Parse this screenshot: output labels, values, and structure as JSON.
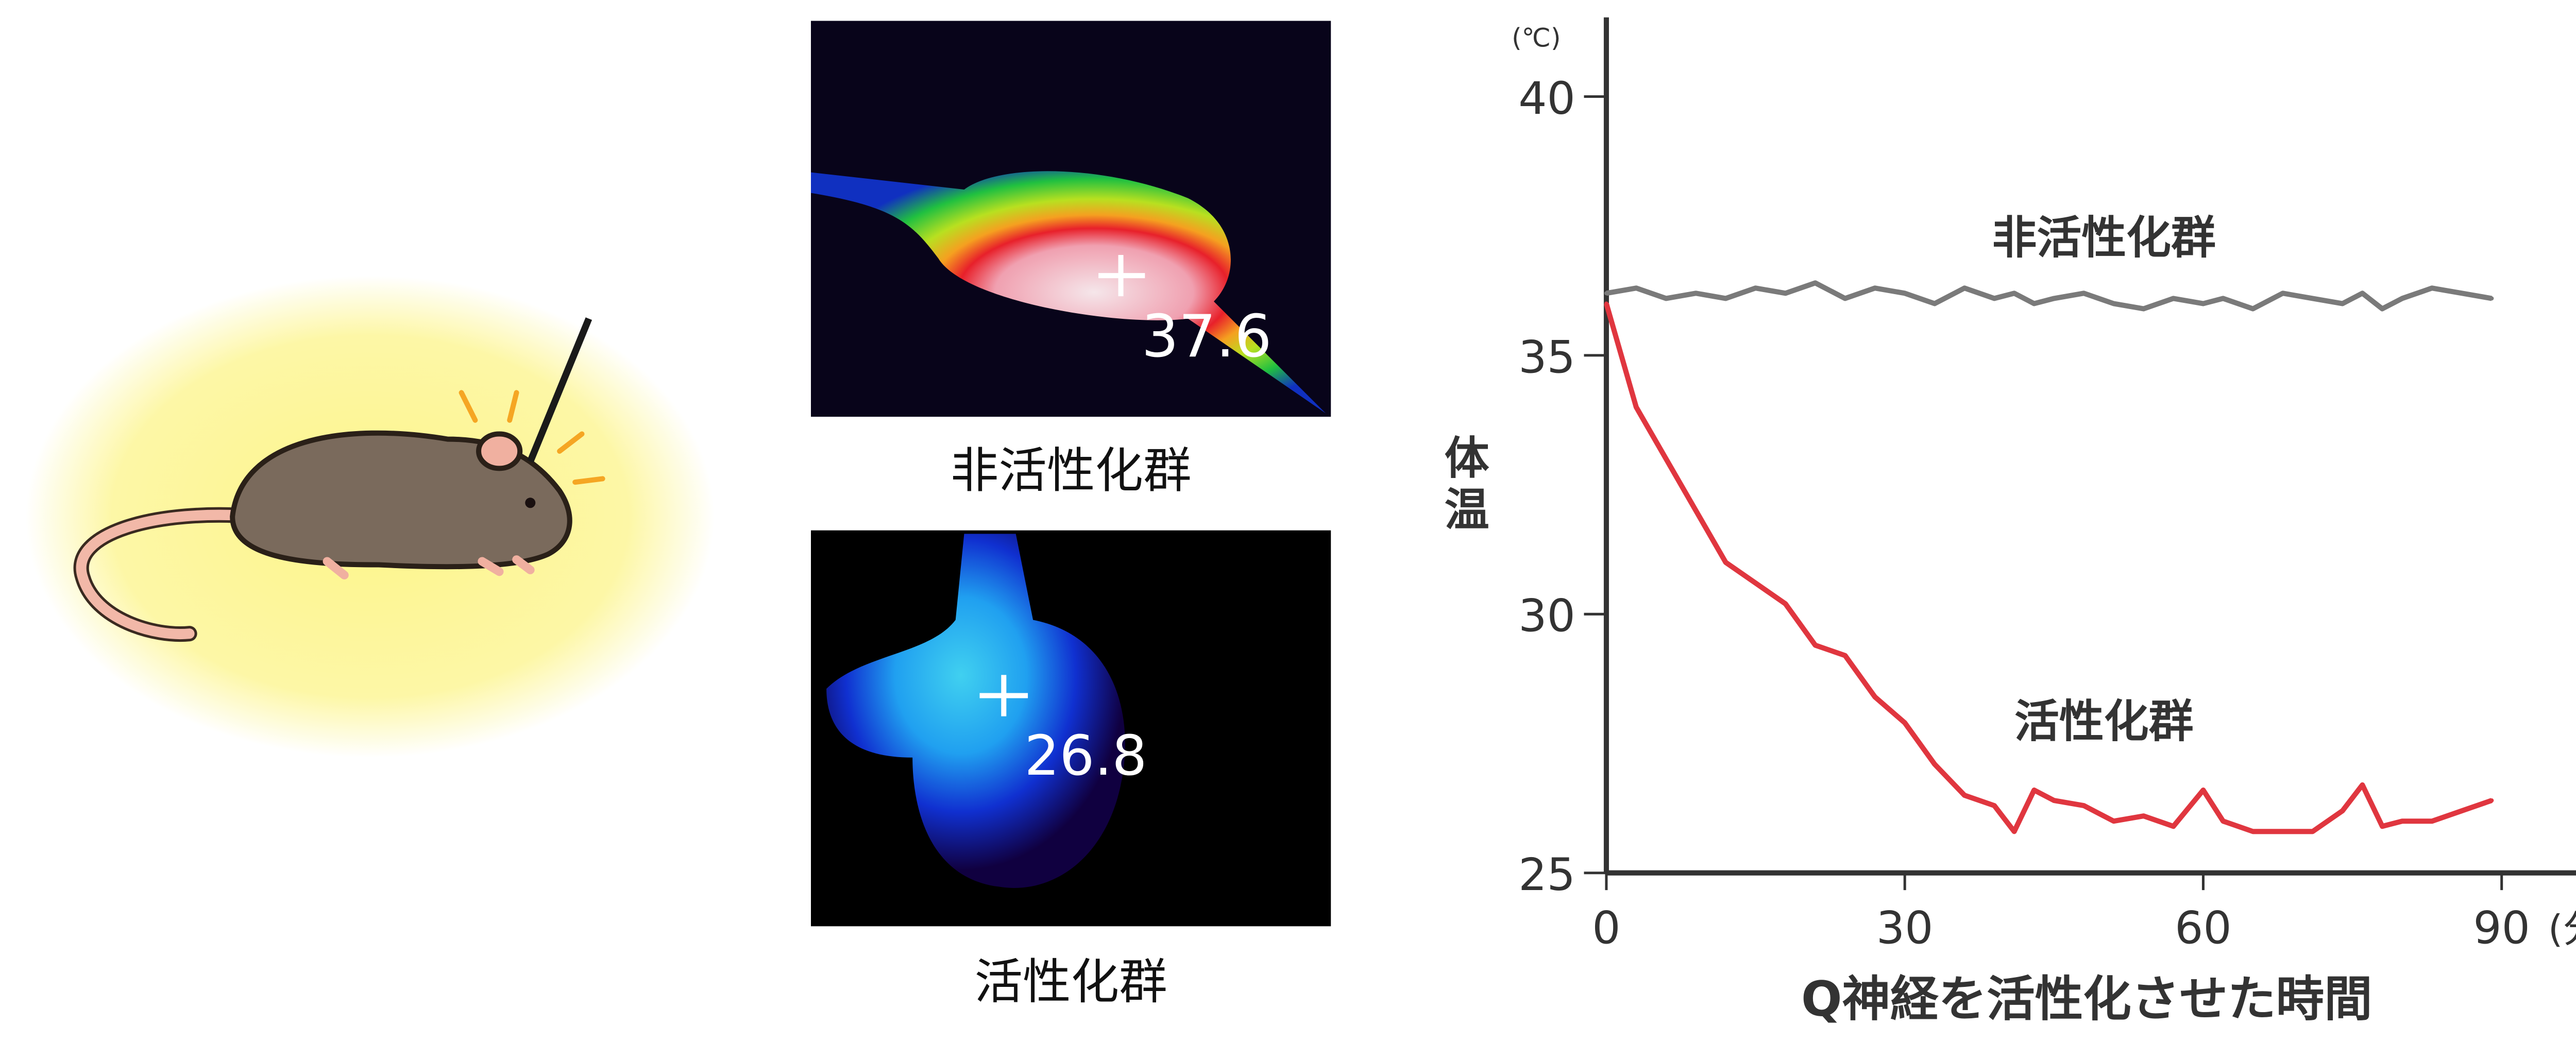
{
  "thermal": {
    "inactive": {
      "reading": "37.6",
      "caption": "非活性化群"
    },
    "active": {
      "reading": "26.8",
      "caption": "活性化群"
    }
  },
  "colors": {
    "inactive_series": "#7a7a7a",
    "active_series": "#e0363f",
    "axis": "#333333",
    "glow": "#fdf58a"
  },
  "chart_data": {
    "type": "line",
    "xlabel": "Q神経を活性化させた時間",
    "ylabel": "体温",
    "y_unit": "(℃)",
    "x_unit": "(分)",
    "xlim": [
      0,
      90
    ],
    "ylim": [
      25,
      40
    ],
    "x_ticks": [
      "0",
      "30",
      "60",
      "90"
    ],
    "y_ticks": [
      "25",
      "30",
      "35",
      "40"
    ],
    "grid": false,
    "legend": "inline labels",
    "x": [
      0,
      3,
      6,
      9,
      12,
      15,
      18,
      21,
      24,
      27,
      30,
      33,
      36,
      39,
      41,
      43,
      45,
      48,
      51,
      54,
      57,
      60,
      62,
      65,
      68,
      71,
      74,
      76,
      78,
      80,
      83,
      86,
      89
    ],
    "series": [
      {
        "name": "非活性化群",
        "values": [
          36.2,
          36.3,
          36.1,
          36.2,
          36.1,
          36.3,
          36.2,
          36.4,
          36.1,
          36.3,
          36.2,
          36.0,
          36.3,
          36.1,
          36.2,
          36.0,
          36.1,
          36.2,
          36.0,
          35.9,
          36.1,
          36.0,
          36.1,
          35.9,
          36.2,
          36.1,
          36.0,
          36.2,
          35.9,
          36.1,
          36.3,
          36.2,
          36.1
        ]
      },
      {
        "name": "活性化群",
        "values": [
          36.0,
          34.0,
          33.0,
          32.0,
          31.0,
          30.6,
          30.2,
          29.4,
          29.2,
          28.4,
          27.9,
          27.1,
          26.5,
          26.3,
          25.8,
          26.6,
          26.4,
          26.3,
          26.0,
          26.1,
          25.9,
          26.6,
          26.0,
          25.8,
          25.8,
          25.8,
          26.2,
          26.7,
          25.9,
          26.0,
          26.0,
          26.2,
          26.4
        ]
      }
    ]
  }
}
